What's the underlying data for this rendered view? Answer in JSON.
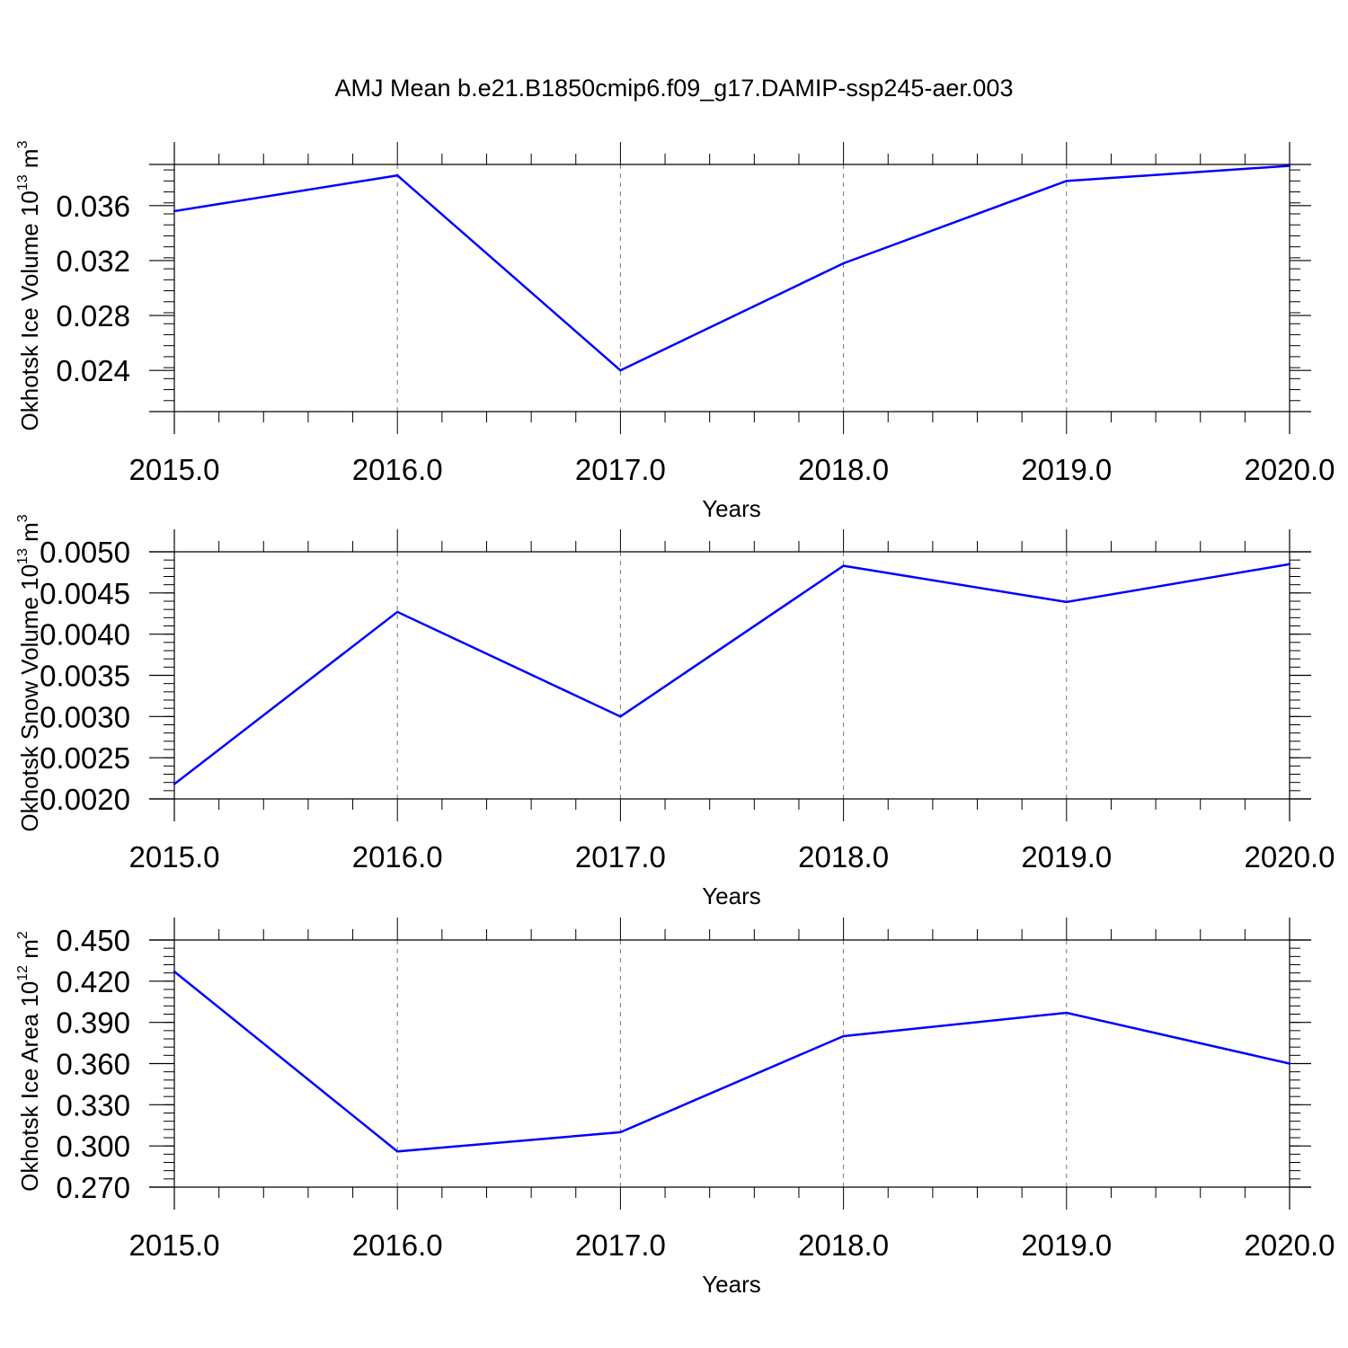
{
  "title": "AMJ Mean b.e21.B1850cmip6.f09_g17.DAMIP-ssp245-aer.003",
  "line_color": "#0000ff",
  "chart_data": [
    {
      "type": "line",
      "title": "",
      "xlabel": "Years",
      "ylabel": {
        "main": "Okhotsk Ice Volume 10",
        "exp": "13",
        "unit": " m",
        "unit_exp": "3"
      },
      "x": [
        2015,
        2016,
        2017,
        2018,
        2019,
        2020
      ],
      "x_tick_labels": [
        "2015.0",
        "2016.0",
        "2017.0",
        "2018.0",
        "2019.0",
        "2020.0"
      ],
      "xlim": [
        2015,
        2020
      ],
      "y": [
        0.0356,
        0.0382,
        0.024,
        0.0318,
        0.0378,
        0.0389
      ],
      "ylim": [
        0.021,
        0.039
      ],
      "y_ticks": [
        0.024,
        0.028,
        0.032,
        0.036
      ],
      "y_tick_labels": [
        "0.024",
        "0.028",
        "0.032",
        "0.036"
      ],
      "y_minor_step": 0.0008,
      "grid": "vertical dashed"
    },
    {
      "type": "line",
      "title": "",
      "xlabel": "Years",
      "ylabel": {
        "main": "Okhotsk Snow Volume 10",
        "exp": "13",
        "unit": " m",
        "unit_exp": "3"
      },
      "x": [
        2015,
        2016,
        2017,
        2018,
        2019,
        2020
      ],
      "x_tick_labels": [
        "2015.0",
        "2016.0",
        "2017.0",
        "2018.0",
        "2019.0",
        "2020.0"
      ],
      "xlim": [
        2015,
        2020
      ],
      "y": [
        0.00218,
        0.00427,
        0.003,
        0.00483,
        0.00439,
        0.00485
      ],
      "ylim": [
        0.002,
        0.005
      ],
      "y_ticks": [
        0.002,
        0.0025,
        0.003,
        0.0035,
        0.004,
        0.0045,
        0.005
      ],
      "y_tick_labels": [
        "0.0020",
        "0.0025",
        "0.0030",
        "0.0035",
        "0.0040",
        "0.0045",
        "0.0050"
      ],
      "y_minor_step": 0.0001,
      "grid": "vertical dashed"
    },
    {
      "type": "line",
      "title": "",
      "xlabel": "Years",
      "ylabel": {
        "main": "Okhotsk Ice Area 10",
        "exp": "12",
        "unit": " m",
        "unit_exp": "2"
      },
      "x": [
        2015,
        2016,
        2017,
        2018,
        2019,
        2020
      ],
      "x_tick_labels": [
        "2015.0",
        "2016.0",
        "2017.0",
        "2018.0",
        "2019.0",
        "2020.0"
      ],
      "xlim": [
        2015,
        2020
      ],
      "y": [
        0.427,
        0.296,
        0.31,
        0.38,
        0.397,
        0.36
      ],
      "ylim": [
        0.27,
        0.45
      ],
      "y_ticks": [
        0.27,
        0.3,
        0.33,
        0.36,
        0.39,
        0.42,
        0.45
      ],
      "y_tick_labels": [
        "0.270",
        "0.300",
        "0.330",
        "0.360",
        "0.390",
        "0.420",
        "0.450"
      ],
      "y_minor_step": 0.006,
      "grid": "vertical dashed"
    }
  ]
}
